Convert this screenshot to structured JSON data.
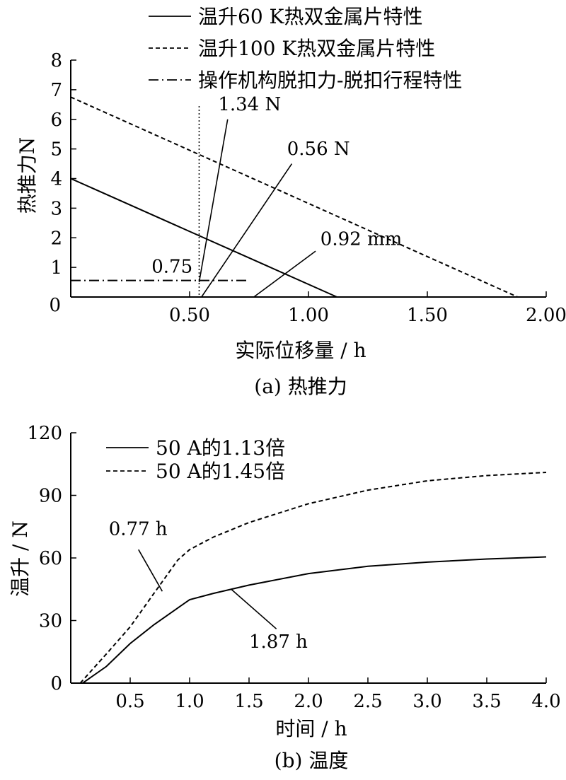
{
  "chart_data": [
    {
      "type": "line",
      "caption": "(a)  热推力",
      "xlabel": "实际位移量 / h",
      "ylabel": "热推力N",
      "xlim": [
        0,
        2.0
      ],
      "ylim": [
        0,
        8
      ],
      "x_ticks": [
        "0.50",
        "1.00",
        "1.50",
        "2.00"
      ],
      "x_tick_values": [
        0.5,
        1.0,
        1.5,
        2.0
      ],
      "x_origin_label": "0",
      "y_ticks": [
        "1",
        "2",
        "3",
        "4",
        "5",
        "6",
        "7",
        "8"
      ],
      "y_tick_values": [
        1,
        2,
        3,
        4,
        5,
        6,
        7,
        8
      ],
      "legend_position": "top",
      "series": [
        {
          "name": "温升60 K热双金属片特性",
          "style": "solid",
          "points": [
            [
              0,
              4.0
            ],
            [
              1.12,
              0
            ]
          ]
        },
        {
          "name": "温升100 K热双金属片特性",
          "style": "dashed",
          "points": [
            [
              0,
              6.75
            ],
            [
              1.88,
              0
            ]
          ]
        },
        {
          "name": "操作机构脱扣力-脱扣行程特性",
          "style": "dashdot",
          "points": [
            [
              0,
              0.56
            ],
            [
              0.75,
              0.56
            ]
          ]
        }
      ],
      "vertical_line": {
        "x": 0.54,
        "style": "dotted"
      },
      "annotations": [
        {
          "text": "1.34 N",
          "label_at": [
            0.62,
            6.3
          ],
          "leader": [
            [
              0.66,
              6.0
            ],
            [
              0.54,
              0.5
            ]
          ]
        },
        {
          "text": "0.56 N",
          "label_at": [
            0.91,
            4.8
          ],
          "leader": [
            [
              0.93,
              4.5
            ],
            [
              0.55,
              0
            ]
          ]
        },
        {
          "text": "0.92 mm",
          "label_at": [
            1.05,
            1.75
          ],
          "leader": [
            [
              1.03,
              1.55
            ],
            [
              0.77,
              0
            ]
          ]
        },
        {
          "text": "0.75",
          "label_at": [
            0.34,
            0.82
          ],
          "leader": null
        }
      ]
    },
    {
      "type": "line",
      "caption": "(b)  温度",
      "xlabel": "时间 / h",
      "ylabel": "温升 / N",
      "xlim": [
        0,
        4.0
      ],
      "ylim": [
        0,
        120
      ],
      "x_ticks": [
        "0.5",
        "1.0",
        "1.5",
        "2.0",
        "2.5",
        "3.0",
        "3.5",
        "4.0"
      ],
      "x_tick_values": [
        0.5,
        1.0,
        1.5,
        2.0,
        2.5,
        3.0,
        3.5,
        4.0
      ],
      "y_ticks": [
        "0",
        "30",
        "60",
        "90",
        "120"
      ],
      "y_tick_values": [
        0,
        30,
        60,
        90,
        120
      ],
      "legend_position": "top-left",
      "series": [
        {
          "name": "50 A的1.13倍",
          "style": "solid",
          "points": [
            [
              0.1,
              0
            ],
            [
              0.3,
              8
            ],
            [
              0.5,
              19
            ],
            [
              0.7,
              28
            ],
            [
              0.9,
              36
            ],
            [
              1.0,
              40
            ],
            [
              1.2,
              43
            ],
            [
              1.5,
              47
            ],
            [
              2.0,
              52.5
            ],
            [
              2.5,
              56
            ],
            [
              3.0,
              58
            ],
            [
              3.5,
              59.5
            ],
            [
              4.0,
              60.5
            ]
          ]
        },
        {
          "name": "50 A的1.45倍",
          "style": "dashed",
          "points": [
            [
              0.08,
              0
            ],
            [
              0.3,
              14
            ],
            [
              0.5,
              27
            ],
            [
              0.7,
              43
            ],
            [
              0.9,
              59
            ],
            [
              1.0,
              64
            ],
            [
              1.2,
              70
            ],
            [
              1.5,
              77
            ],
            [
              2.0,
              86
            ],
            [
              2.5,
              92.5
            ],
            [
              3.0,
              97
            ],
            [
              3.5,
              99.5
            ],
            [
              4.0,
              101
            ]
          ]
        }
      ],
      "annotations": [
        {
          "text": "0.77 h",
          "label_at": [
            0.32,
            71
          ],
          "leader": [
            [
              0.57,
              64
            ],
            [
              0.77,
              44
            ]
          ]
        },
        {
          "text": "1.87 h",
          "label_at": [
            1.5,
            17
          ],
          "leader": [
            [
              1.73,
              26
            ],
            [
              1.35,
              45
            ]
          ]
        }
      ]
    }
  ]
}
